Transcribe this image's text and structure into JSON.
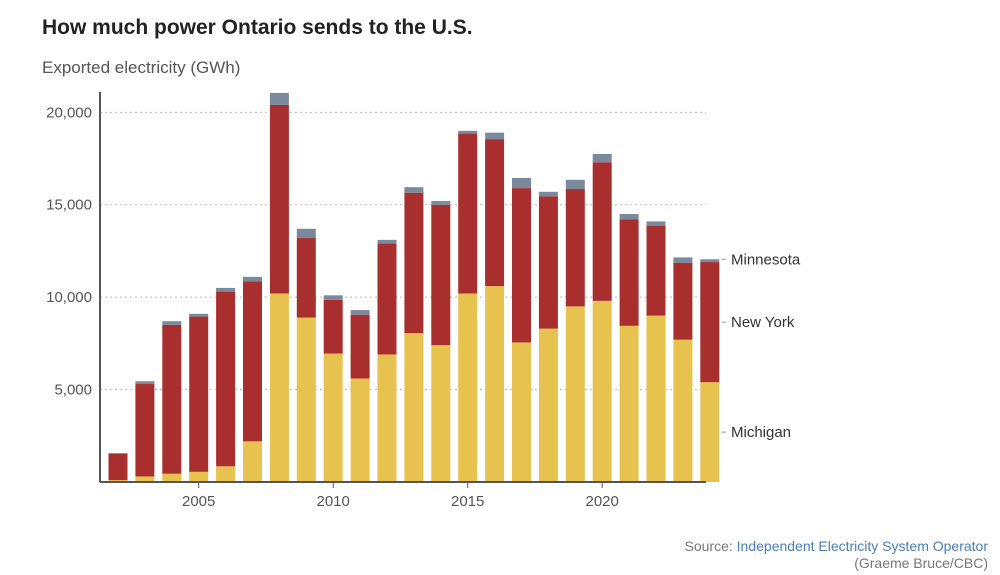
{
  "title": "How much power Ontario sends to the U.S.",
  "ylabel": "Exported electricity (GWh)",
  "source": {
    "prefix": "Source:",
    "link_text": "Independent Electricity System Operator",
    "credit": "(Graeme Bruce/CBC)"
  },
  "chart_data": {
    "type": "bar",
    "stacked": true,
    "x": [
      2002,
      2003,
      2004,
      2005,
      2006,
      2007,
      2008,
      2009,
      2010,
      2011,
      2012,
      2013,
      2014,
      2015,
      2016,
      2017,
      2018,
      2019,
      2020,
      2021,
      2022,
      2023,
      2024
    ],
    "x_ticks": [
      2005,
      2010,
      2015,
      2020
    ],
    "y_ticks": [
      5000,
      10000,
      15000,
      20000
    ],
    "y_tick_labels": [
      "5,000",
      "10,000",
      "15,000",
      "20,000"
    ],
    "ylim": [
      0,
      21100
    ],
    "grid": "horizontal dotted",
    "legend": "right, end of bars",
    "series": [
      {
        "name": "Michigan",
        "color": "#e8c24f",
        "values": [
          100,
          300,
          450,
          550,
          850,
          2200,
          10200,
          8900,
          6950,
          5600,
          6900,
          8050,
          7400,
          10200,
          10600,
          7550,
          8300,
          9500,
          9800,
          8450,
          9000,
          7700,
          5400
        ]
      },
      {
        "name": "New York",
        "color": "#a92f2f",
        "values": [
          1450,
          5000,
          8050,
          8400,
          9450,
          8650,
          10200,
          4300,
          2900,
          3450,
          6000,
          7600,
          7600,
          8650,
          7950,
          8350,
          7150,
          6350,
          7500,
          5750,
          4850,
          4150,
          6500
        ]
      },
      {
        "name": "Minnesota",
        "color": "#7a8a9c",
        "values": [
          0,
          150,
          200,
          150,
          200,
          250,
          650,
          500,
          250,
          250,
          200,
          300,
          200,
          150,
          350,
          550,
          250,
          500,
          450,
          300,
          250,
          300,
          150
        ]
      }
    ]
  }
}
